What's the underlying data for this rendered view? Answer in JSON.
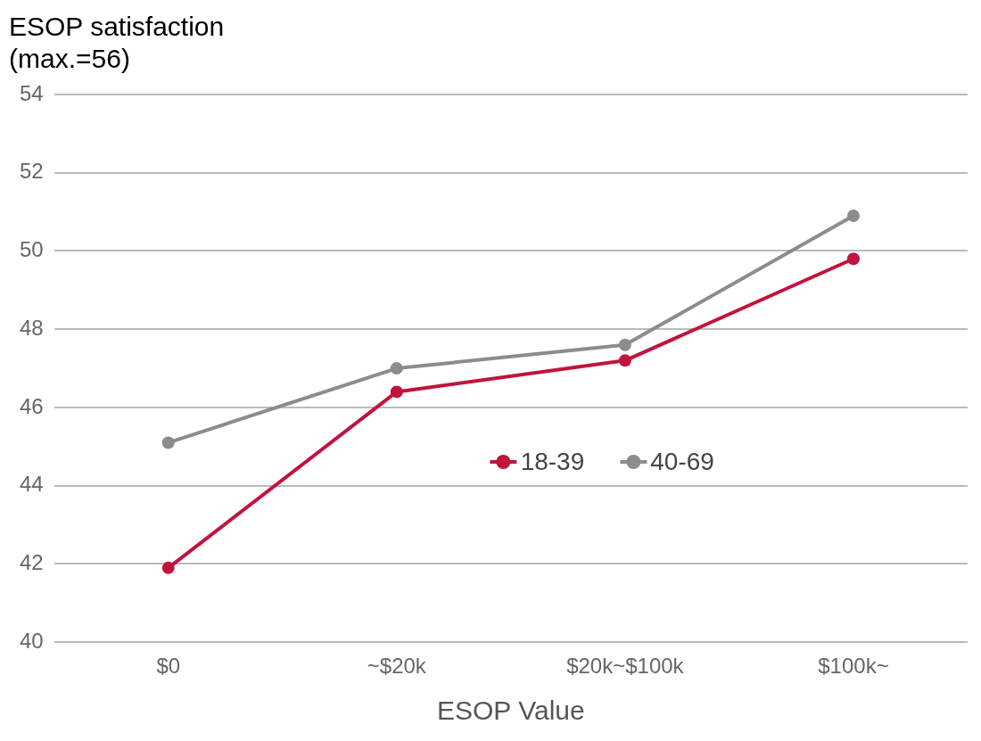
{
  "chart_data": {
    "type": "line",
    "title": "ESOP satisfaction\n(max.=56)",
    "xlabel": "ESOP Value",
    "categories": [
      "$0",
      "~$20k",
      "$20k~$100k",
      "$100k~"
    ],
    "series": [
      {
        "name": "18-39",
        "color": "#c0143c",
        "values": [
          41.9,
          46.4,
          47.2,
          49.8
        ]
      },
      {
        "name": "40-69",
        "color": "#8c8c8c",
        "values": [
          45.1,
          47.0,
          47.6,
          50.9
        ]
      }
    ],
    "ylim": [
      40,
      54
    ],
    "yticks": [
      40,
      42,
      44,
      46,
      48,
      50,
      52,
      54
    ],
    "grid": "y",
    "legend": "center",
    "marker": "circle",
    "line_style": "solid"
  }
}
